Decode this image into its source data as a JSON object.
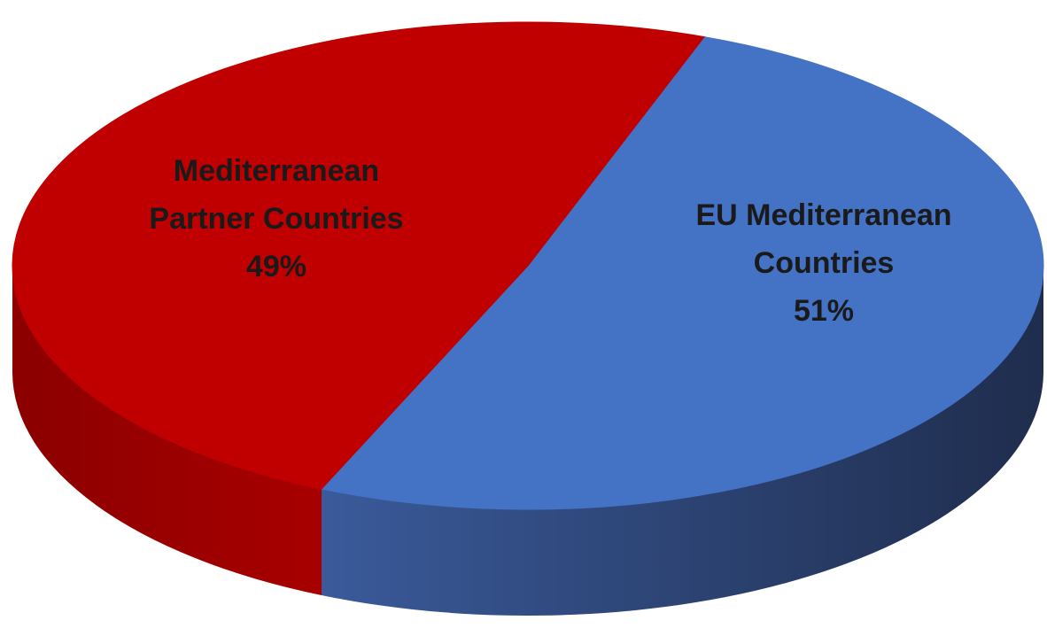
{
  "chart_data": {
    "type": "pie",
    "title": "",
    "legend": "none",
    "style": "3d",
    "slices": [
      {
        "label_lines": [
          "EU Mediterranean",
          "Countries"
        ],
        "percent_label": "51%",
        "value": 51,
        "top_color": "#4472c4",
        "side_color_light": "#3a5a9a",
        "side_color_dark": "#1f2d4d"
      },
      {
        "label_lines": [
          "Mediterranean",
          "Partner Countries"
        ],
        "percent_label": "49%",
        "value": 49,
        "top_color": "#c00000",
        "side_color_light": "#a80000",
        "side_color_dark": "#8b0000"
      }
    ]
  }
}
